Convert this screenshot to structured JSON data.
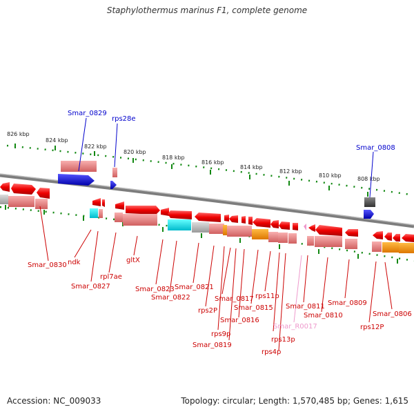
{
  "title": "Staphylothermus marinus F1, complete genome",
  "footer": {
    "accession": "Accession: NC_009033",
    "summary": "Topology: circular; Length: 1,570,485 bp; Genes: 1,615"
  },
  "colors": {
    "gene": "#ee0000",
    "rna_blue": "#0000dd",
    "label_red": "#cc0000",
    "label_blue": "#0000cc",
    "label_pink": "#ee99cc",
    "backbone": "#888888",
    "tick": "#118811"
  },
  "axis_labels": [
    "826 kbp",
    "824 kbp",
    "822 kbp",
    "820 kbp",
    "818 kbp",
    "816 kbp",
    "814 kbp",
    "812 kbp",
    "810 kbp",
    "808 kbp"
  ],
  "top_labels": [
    {
      "name": "Smar_0829",
      "color": "blue"
    },
    {
      "name": "rps28e",
      "color": "blue"
    },
    {
      "name": "Smar_0808",
      "color": "blue"
    }
  ],
  "bottom_labels": [
    {
      "name": "Smar_0830",
      "color": "red"
    },
    {
      "name": "ndk",
      "color": "red"
    },
    {
      "name": "Smar_0827",
      "color": "red"
    },
    {
      "name": "rpl7ae",
      "color": "red"
    },
    {
      "name": "gltX",
      "color": "red"
    },
    {
      "name": "Smar_0823",
      "color": "red"
    },
    {
      "name": "Smar_0822",
      "color": "red"
    },
    {
      "name": "Smar_0821",
      "color": "red"
    },
    {
      "name": "rps2P",
      "color": "red"
    },
    {
      "name": "Smar_0817",
      "color": "red"
    },
    {
      "name": "rps9p",
      "color": "red"
    },
    {
      "name": "Smar_0816",
      "color": "red"
    },
    {
      "name": "Smar_0819",
      "color": "red"
    },
    {
      "name": "Smar_0815",
      "color": "red"
    },
    {
      "name": "rps11p",
      "color": "red"
    },
    {
      "name": "Smar_R0017",
      "color": "pink"
    },
    {
      "name": "rps13p",
      "color": "red"
    },
    {
      "name": "rps4p",
      "color": "red"
    },
    {
      "name": "Smar_0811",
      "color": "red"
    },
    {
      "name": "Smar_0810",
      "color": "red"
    },
    {
      "name": "Smar_0809",
      "color": "red"
    },
    {
      "name": "rps12P",
      "color": "red"
    },
    {
      "name": "Smar_0806",
      "color": "red"
    }
  ]
}
